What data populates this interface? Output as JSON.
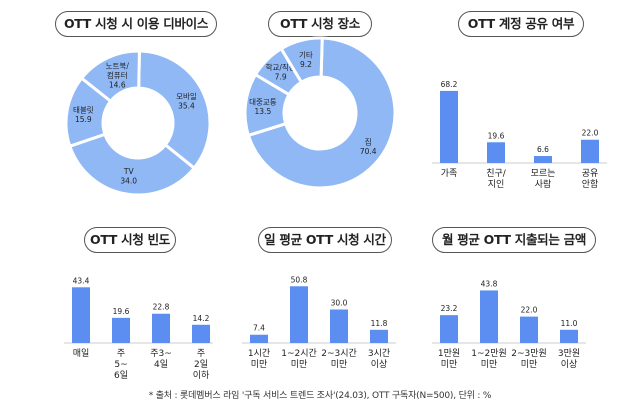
{
  "colors": {
    "bar": "#5b8ef0",
    "donut": "#8fb8f5",
    "separator": "#ffffff",
    "text": "#222222"
  },
  "chart_data": [
    {
      "type": "pie",
      "title": "OTT 시청 시 이용 디바이스",
      "slices": [
        {
          "label": "모바일",
          "value": 35.4
        },
        {
          "label": "TV",
          "value": 34.0
        },
        {
          "label": "태블릿",
          "value": 15.9
        },
        {
          "label": "노트북/ 컴퓨터",
          "value": 14.6
        }
      ]
    },
    {
      "type": "pie",
      "title": "OTT 시청 장소",
      "slices": [
        {
          "label": "집",
          "value": 70.4
        },
        {
          "label": "대중교통",
          "value": 13.5
        },
        {
          "label": "학교/직장",
          "value": 7.9
        },
        {
          "label": "기타",
          "value": 9.2
        }
      ]
    },
    {
      "type": "bar",
      "title": "OTT 계정 공유 여부",
      "categories": [
        "가족",
        "친구/ 지인",
        "모르는 사람",
        "공유 안함"
      ],
      "values": [
        68.2,
        19.6,
        6.6,
        22.0
      ],
      "ylim": [
        0,
        70
      ]
    },
    {
      "type": "bar",
      "title": "OTT 시청 빈도",
      "categories": [
        "매일",
        "주 5~ 6일",
        "주3~ 4일",
        "주 2일 이하"
      ],
      "values": [
        43.4,
        19.6,
        22.8,
        14.2
      ],
      "ylim": [
        0,
        60
      ]
    },
    {
      "type": "bar",
      "title": "일 평균 OTT 시청 시간",
      "categories": [
        "1시간 미만",
        "1~2시간 미만",
        "2~3시간 미만",
        "3시간 이상"
      ],
      "values": [
        7.4,
        50.8,
        30.0,
        11.8
      ],
      "ylim": [
        0,
        60
      ]
    },
    {
      "type": "bar",
      "title": "월 평균 OTT 지출되는 금액",
      "categories": [
        "1만원 미만",
        "1~2만원 미만",
        "2~3만원 미만",
        "3만원 이상"
      ],
      "values": [
        23.2,
        43.8,
        22.0,
        11.0
      ],
      "ylim": [
        0,
        60
      ]
    }
  ],
  "footer": "* 출처 : 롯데멤버스 라임 '구독 서비스 트렌드 조사'(24.03), OTT 구독자(N=500), 단위 : %"
}
